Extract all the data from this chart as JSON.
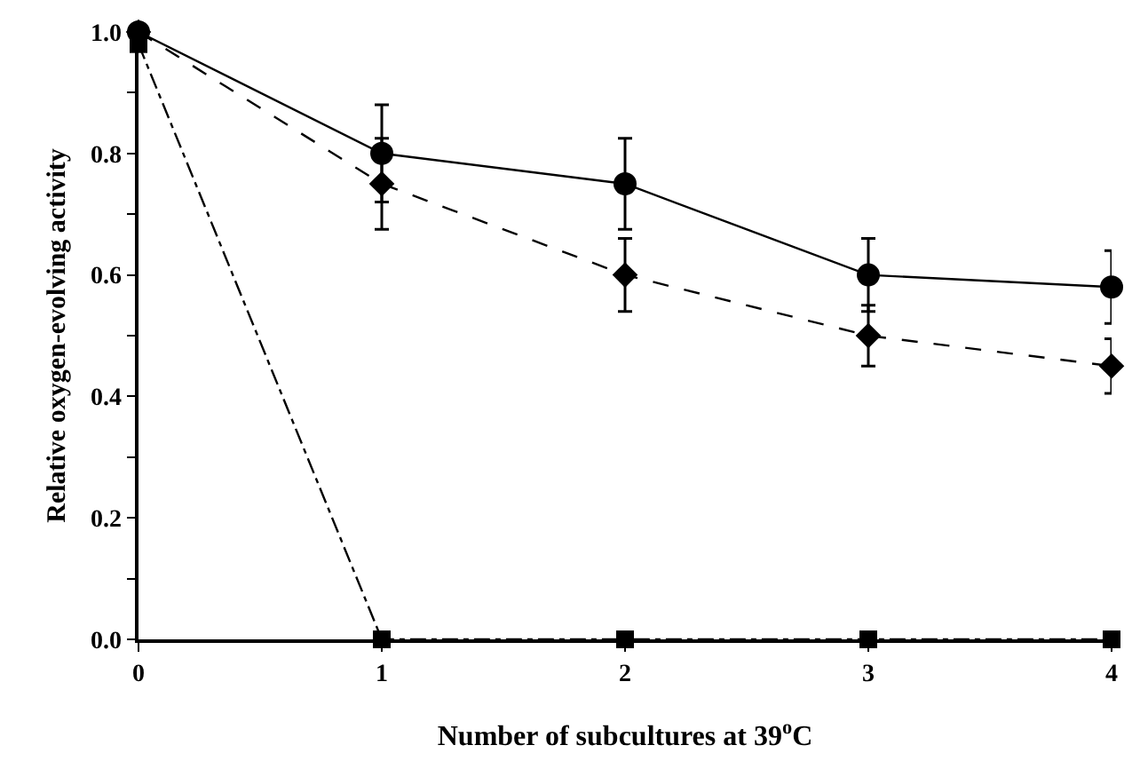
{
  "chart_data": {
    "type": "line",
    "xlabel": "Number of subcultures at 39$^{o}$C",
    "ylabel": "Relative oxygen-evolving activity",
    "x": [
      0,
      1,
      2,
      3,
      4
    ],
    "xlim": [
      0,
      4
    ],
    "xticks": [
      0,
      1,
      2,
      3,
      4
    ],
    "ylim": [
      0,
      1.0
    ],
    "yticks": [
      {
        "value": 0,
        "label": "0.0"
      },
      {
        "value": 0.1,
        "label": null
      },
      0.2,
      {
        "value": 0.3,
        "label": null
      },
      0.4,
      {
        "value": 0.5,
        "label": null
      },
      0.6,
      {
        "value": 0.7,
        "label": null
      },
      0.8,
      {
        "value": 0.9,
        "label": null
      },
      {
        "value": 1.0,
        "label": "1.0"
      }
    ],
    "series": [
      {
        "color": "#000000",
        "marker": "circle",
        "line_style": "solid",
        "values": [
          1.0,
          0.8,
          0.75,
          0.6,
          0.58
        ],
        "errors": [
          null,
          0.08,
          0.075,
          0.06,
          0.06
        ]
      },
      {
        "color": "#000000",
        "marker": "diamond",
        "line_style": "dashed",
        "values": [
          1.0,
          0.75,
          0.6,
          0.5,
          0.45
        ],
        "errors": [
          null,
          0.075,
          0.06,
          0.05,
          0.045
        ]
      },
      {
        "color": "#000000",
        "marker": "square",
        "line_style": "dashdot",
        "values": [
          0.98,
          0,
          0,
          0,
          0
        ]
      }
    ]
  }
}
